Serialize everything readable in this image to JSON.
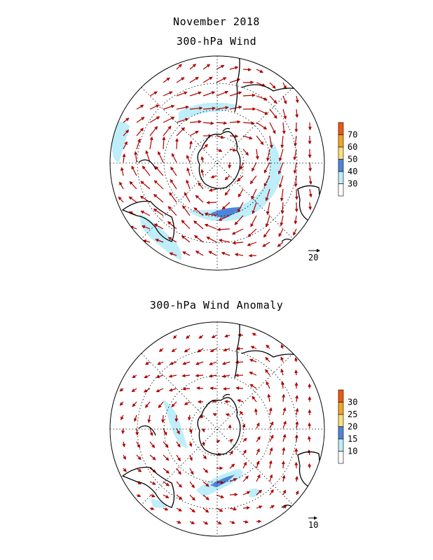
{
  "header": {
    "month_title": "November 2018",
    "wind_title": "300-hPa Wind",
    "anomaly_title": "300-hPa Wind Anomaly"
  },
  "panels": [
    {
      "id": "wind",
      "colorbar": {
        "ticks": [
          "30",
          "40",
          "50",
          "60",
          "70"
        ],
        "colors": [
          "#ffffff",
          "#bdeefa",
          "#4f85d9",
          "#fbe07a",
          "#f6a524",
          "#ee5a10"
        ]
      },
      "reference_vector_label": "20",
      "vector_color": "#b00000"
    },
    {
      "id": "anomaly",
      "colorbar": {
        "ticks": [
          "10",
          "15",
          "20",
          "25",
          "30"
        ],
        "colors": [
          "#ffffff",
          "#bdeefa",
          "#4f85d9",
          "#fbe07a",
          "#f6a524",
          "#ee5a10"
        ]
      },
      "reference_vector_label": "10",
      "vector_color": "#b00000"
    }
  ]
}
